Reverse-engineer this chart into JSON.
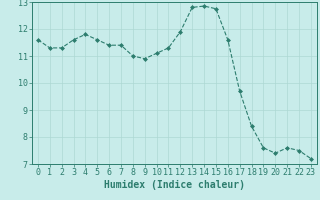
{
  "x": [
    0,
    1,
    2,
    3,
    4,
    5,
    6,
    7,
    8,
    9,
    10,
    11,
    12,
    13,
    14,
    15,
    16,
    17,
    18,
    19,
    20,
    21,
    22,
    23
  ],
  "y": [
    11.6,
    11.3,
    11.3,
    11.6,
    11.8,
    11.6,
    11.4,
    11.4,
    11.0,
    10.9,
    11.1,
    11.3,
    11.9,
    12.8,
    12.85,
    12.75,
    11.6,
    9.7,
    8.4,
    7.6,
    7.4,
    7.6,
    7.5,
    7.2
  ],
  "line_color": "#2d7d6e",
  "marker": "D",
  "marker_size": 2,
  "background_color": "#c8ecea",
  "grid_color": "#add8d4",
  "xlabel": "Humidex (Indice chaleur)",
  "xlabel_fontsize": 7,
  "tick_fontsize": 6,
  "ylim": [
    7,
    13
  ],
  "xlim": [
    -0.5,
    23.5
  ],
  "yticks": [
    7,
    8,
    9,
    10,
    11,
    12,
    13
  ],
  "xticks": [
    0,
    1,
    2,
    3,
    4,
    5,
    6,
    7,
    8,
    9,
    10,
    11,
    12,
    13,
    14,
    15,
    16,
    17,
    18,
    19,
    20,
    21,
    22,
    23
  ]
}
